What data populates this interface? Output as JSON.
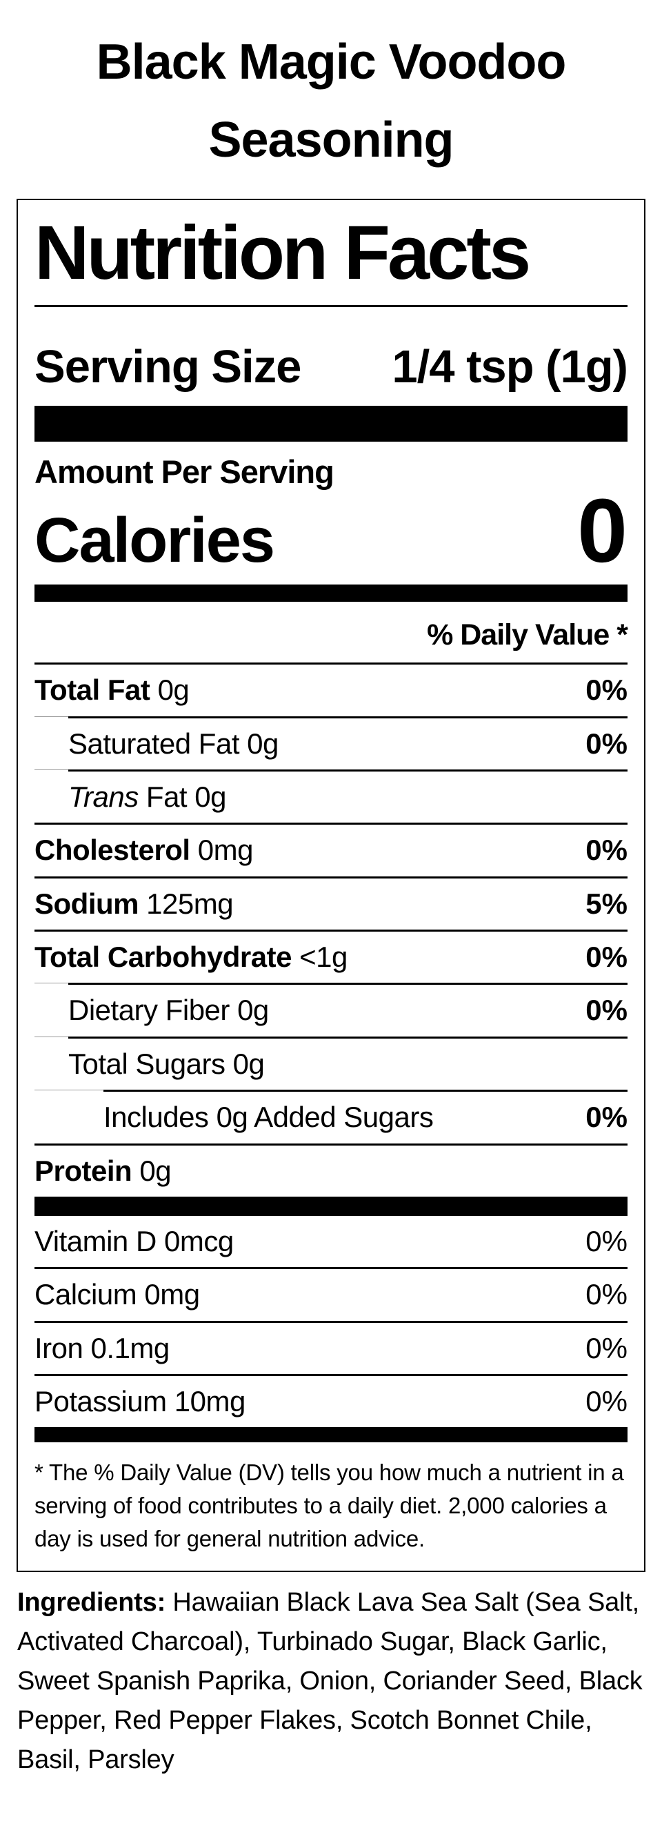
{
  "page_title": {
    "line1": "Black Magic Voodoo",
    "line2": "Seasoning"
  },
  "label": {
    "heading": "Nutrition Facts",
    "serving": {
      "label": "Serving Size",
      "value": "1/4 tsp (1g)"
    },
    "amount_per_serving": "Amount Per Serving",
    "calories": {
      "label": "Calories",
      "value": "0"
    },
    "daily_value_header": "% Daily Value *",
    "rows": [
      {
        "name": "Total Fat",
        "amount": "0g",
        "dv": "0%"
      },
      {
        "name": "Saturated Fat",
        "amount": "0g",
        "dv": "0%"
      },
      {
        "name": "Trans",
        "amount": "Fat 0g",
        "dv": ""
      },
      {
        "name": "Cholesterol",
        "amount": "0mg",
        "dv": "0%"
      },
      {
        "name": "Sodium",
        "amount": "125mg",
        "dv": "5%"
      },
      {
        "name": "Total Carbohydrate",
        "amount": "<1g",
        "dv": "0%"
      },
      {
        "name": "Dietary Fiber",
        "amount": "0g",
        "dv": "0%"
      },
      {
        "name": "Total Sugars",
        "amount": "0g",
        "dv": ""
      },
      {
        "name": "Includes 0g Added Sugars",
        "amount": "",
        "dv": "0%"
      },
      {
        "name": "Protein",
        "amount": "0g",
        "dv": ""
      }
    ],
    "micronutrients": [
      {
        "name": "Vitamin D",
        "amount": "0mcg",
        "dv": "0%"
      },
      {
        "name": "Calcium",
        "amount": "0mg",
        "dv": "0%"
      },
      {
        "name": "Iron",
        "amount": "0.1mg",
        "dv": "0%"
      },
      {
        "name": "Potassium",
        "amount": "10mg",
        "dv": "0%"
      }
    ],
    "footnote": "* The % Daily Value (DV) tells you how much a nutrient in a serving of food contributes to a daily diet. 2,000 calories a day is used for general nutrition advice."
  },
  "ingredients": {
    "label": "Ingredients:",
    "text": " Hawaiian Black Lava Sea Salt (Sea Salt, Activated Charcoal), Turbinado Sugar, Black Garlic, Sweet Spanish Paprika, Onion, Coriander Seed, Black Pepper, Red Pepper Flakes, Scotch Bonnet Chile, Basil, Parsley"
  },
  "colors": {
    "text": "#000000",
    "background": "#ffffff",
    "rule_black": "#000000",
    "hairline_gray": "#999999"
  }
}
